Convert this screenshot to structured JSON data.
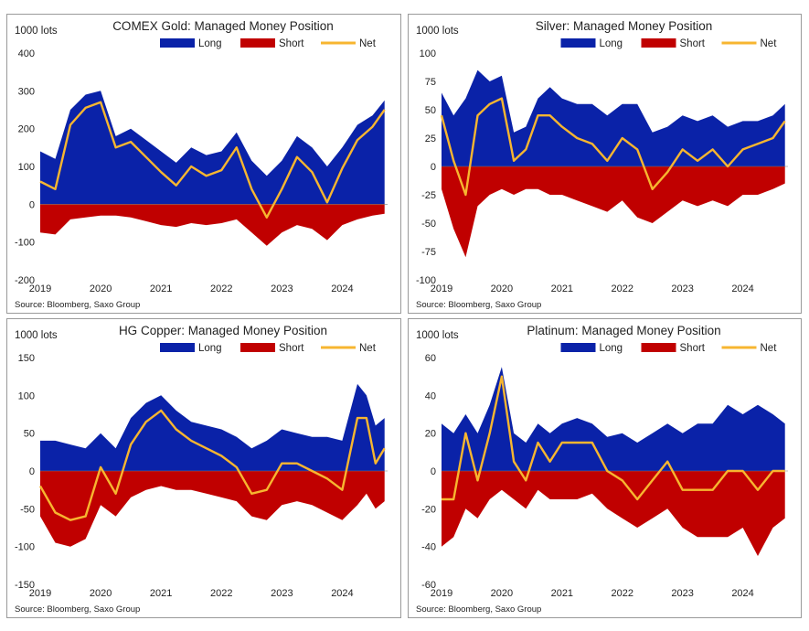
{
  "colors": {
    "long": "#0a22a8",
    "short": "#c00000",
    "net": "#f7b630",
    "zero_line": "#7a7a7a"
  },
  "legend": {
    "long": "Long",
    "short": "Short",
    "net": "Net"
  },
  "source": "Source:  Bloomberg,  Saxo Group",
  "chart_data": [
    {
      "type": "area",
      "title": "COMEX Gold: Managed Money Position",
      "unit": "1000 lots",
      "ylim": [
        -200,
        400
      ],
      "yticks": [
        -200,
        -100,
        0,
        100,
        200,
        300,
        400
      ],
      "xlim": [
        2019.0,
        2024.75
      ],
      "xticks": [
        "2019",
        "2020",
        "2021",
        "2022",
        "2023",
        "2024"
      ],
      "x": [
        2019.0,
        2019.25,
        2019.5,
        2019.75,
        2020.0,
        2020.25,
        2020.5,
        2020.75,
        2021.0,
        2021.25,
        2021.5,
        2021.75,
        2022.0,
        2022.25,
        2022.5,
        2022.75,
        2023.0,
        2023.25,
        2023.5,
        2023.75,
        2024.0,
        2024.25,
        2024.5,
        2024.7
      ],
      "long": [
        140,
        120,
        250,
        290,
        300,
        180,
        200,
        170,
        140,
        110,
        150,
        130,
        140,
        190,
        115,
        75,
        115,
        180,
        150,
        100,
        150,
        210,
        235,
        275
      ],
      "short": [
        -75,
        -80,
        -40,
        -35,
        -30,
        -30,
        -35,
        -45,
        -55,
        -60,
        -50,
        -55,
        -50,
        -40,
        -75,
        -110,
        -75,
        -55,
        -65,
        -95,
        -55,
        -40,
        -30,
        -25
      ],
      "net": [
        60,
        40,
        210,
        255,
        270,
        150,
        165,
        125,
        85,
        50,
        100,
        75,
        90,
        150,
        40,
        -35,
        40,
        125,
        85,
        5,
        95,
        170,
        205,
        250
      ]
    },
    {
      "type": "area",
      "title": "Silver: Managed Money Position",
      "unit": "1000 lots",
      "ylim": [
        -100,
        100
      ],
      "yticks": [
        -100,
        -75,
        -50,
        -25,
        0,
        25,
        50,
        75,
        100
      ],
      "xlim": [
        2019.0,
        2024.75
      ],
      "xticks": [
        "2019",
        "2020",
        "2021",
        "2022",
        "2023",
        "2024"
      ],
      "x": [
        2019.0,
        2019.2,
        2019.4,
        2019.6,
        2019.8,
        2020.0,
        2020.2,
        2020.4,
        2020.6,
        2020.8,
        2021.0,
        2021.25,
        2021.5,
        2021.75,
        2022.0,
        2022.25,
        2022.5,
        2022.75,
        2023.0,
        2023.25,
        2023.5,
        2023.75,
        2024.0,
        2024.25,
        2024.5,
        2024.7
      ],
      "long": [
        65,
        45,
        60,
        85,
        75,
        80,
        30,
        35,
        60,
        70,
        60,
        55,
        55,
        45,
        55,
        55,
        30,
        35,
        45,
        40,
        45,
        35,
        40,
        40,
        45,
        55
      ],
      "short": [
        -20,
        -55,
        -80,
        -35,
        -25,
        -20,
        -25,
        -20,
        -20,
        -25,
        -25,
        -30,
        -35,
        -40,
        -30,
        -45,
        -50,
        -40,
        -30,
        -35,
        -30,
        -35,
        -25,
        -25,
        -20,
        -15
      ],
      "net": [
        45,
        5,
        -25,
        45,
        55,
        60,
        5,
        15,
        45,
        45,
        35,
        25,
        20,
        5,
        25,
        15,
        -20,
        -5,
        15,
        5,
        15,
        0,
        15,
        20,
        25,
        40
      ]
    },
    {
      "type": "area",
      "title": "HG Copper: Managed Money Position",
      "unit": "1000 lots",
      "ylim": [
        -150,
        150
      ],
      "yticks": [
        -150,
        -100,
        -50,
        0,
        50,
        100,
        150
      ],
      "xlim": [
        2019.0,
        2024.75
      ],
      "xticks": [
        "2019",
        "2020",
        "2021",
        "2022",
        "2023",
        "2024"
      ],
      "x": [
        2019.0,
        2019.25,
        2019.5,
        2019.75,
        2020.0,
        2020.25,
        2020.5,
        2020.75,
        2021.0,
        2021.25,
        2021.5,
        2021.75,
        2022.0,
        2022.25,
        2022.5,
        2022.75,
        2023.0,
        2023.25,
        2023.5,
        2023.75,
        2024.0,
        2024.25,
        2024.4,
        2024.55,
        2024.7
      ],
      "long": [
        40,
        40,
        35,
        30,
        50,
        30,
        70,
        90,
        100,
        80,
        65,
        60,
        55,
        45,
        30,
        40,
        55,
        50,
        45,
        45,
        40,
        115,
        100,
        60,
        70
      ],
      "short": [
        -60,
        -95,
        -100,
        -90,
        -45,
        -60,
        -35,
        -25,
        -20,
        -25,
        -25,
        -30,
        -35,
        -40,
        -60,
        -65,
        -45,
        -40,
        -45,
        -55,
        -65,
        -45,
        -30,
        -50,
        -40
      ],
      "net": [
        -20,
        -55,
        -65,
        -60,
        5,
        -30,
        35,
        65,
        80,
        55,
        40,
        30,
        20,
        5,
        -30,
        -25,
        10,
        10,
        0,
        -10,
        -25,
        70,
        70,
        10,
        30
      ]
    },
    {
      "type": "area",
      "title": "Platinum: Managed Money Position",
      "unit": "1000 lots",
      "ylim": [
        -60,
        60
      ],
      "yticks": [
        -60,
        -40,
        -20,
        0,
        20,
        40,
        60
      ],
      "xlim": [
        2019.0,
        2024.75
      ],
      "xticks": [
        "2019",
        "2020",
        "2021",
        "2022",
        "2023",
        "2024"
      ],
      "x": [
        2019.0,
        2019.2,
        2019.4,
        2019.6,
        2019.8,
        2020.0,
        2020.2,
        2020.4,
        2020.6,
        2020.8,
        2021.0,
        2021.25,
        2021.5,
        2021.75,
        2022.0,
        2022.25,
        2022.5,
        2022.75,
        2023.0,
        2023.25,
        2023.5,
        2023.75,
        2024.0,
        2024.25,
        2024.5,
        2024.7
      ],
      "long": [
        25,
        20,
        30,
        20,
        35,
        55,
        20,
        15,
        25,
        20,
        25,
        28,
        25,
        18,
        20,
        15,
        20,
        25,
        20,
        25,
        25,
        35,
        30,
        35,
        30,
        25
      ],
      "short": [
        -40,
        -35,
        -20,
        -25,
        -15,
        -10,
        -15,
        -20,
        -10,
        -15,
        -15,
        -15,
        -12,
        -20,
        -25,
        -30,
        -25,
        -20,
        -30,
        -35,
        -35,
        -35,
        -30,
        -45,
        -30,
        -25
      ],
      "net": [
        -15,
        -15,
        20,
        -5,
        20,
        50,
        5,
        -5,
        15,
        5,
        15,
        15,
        15,
        0,
        -5,
        -15,
        -5,
        5,
        -10,
        -10,
        -10,
        0,
        0,
        -10,
        0,
        0
      ]
    }
  ]
}
